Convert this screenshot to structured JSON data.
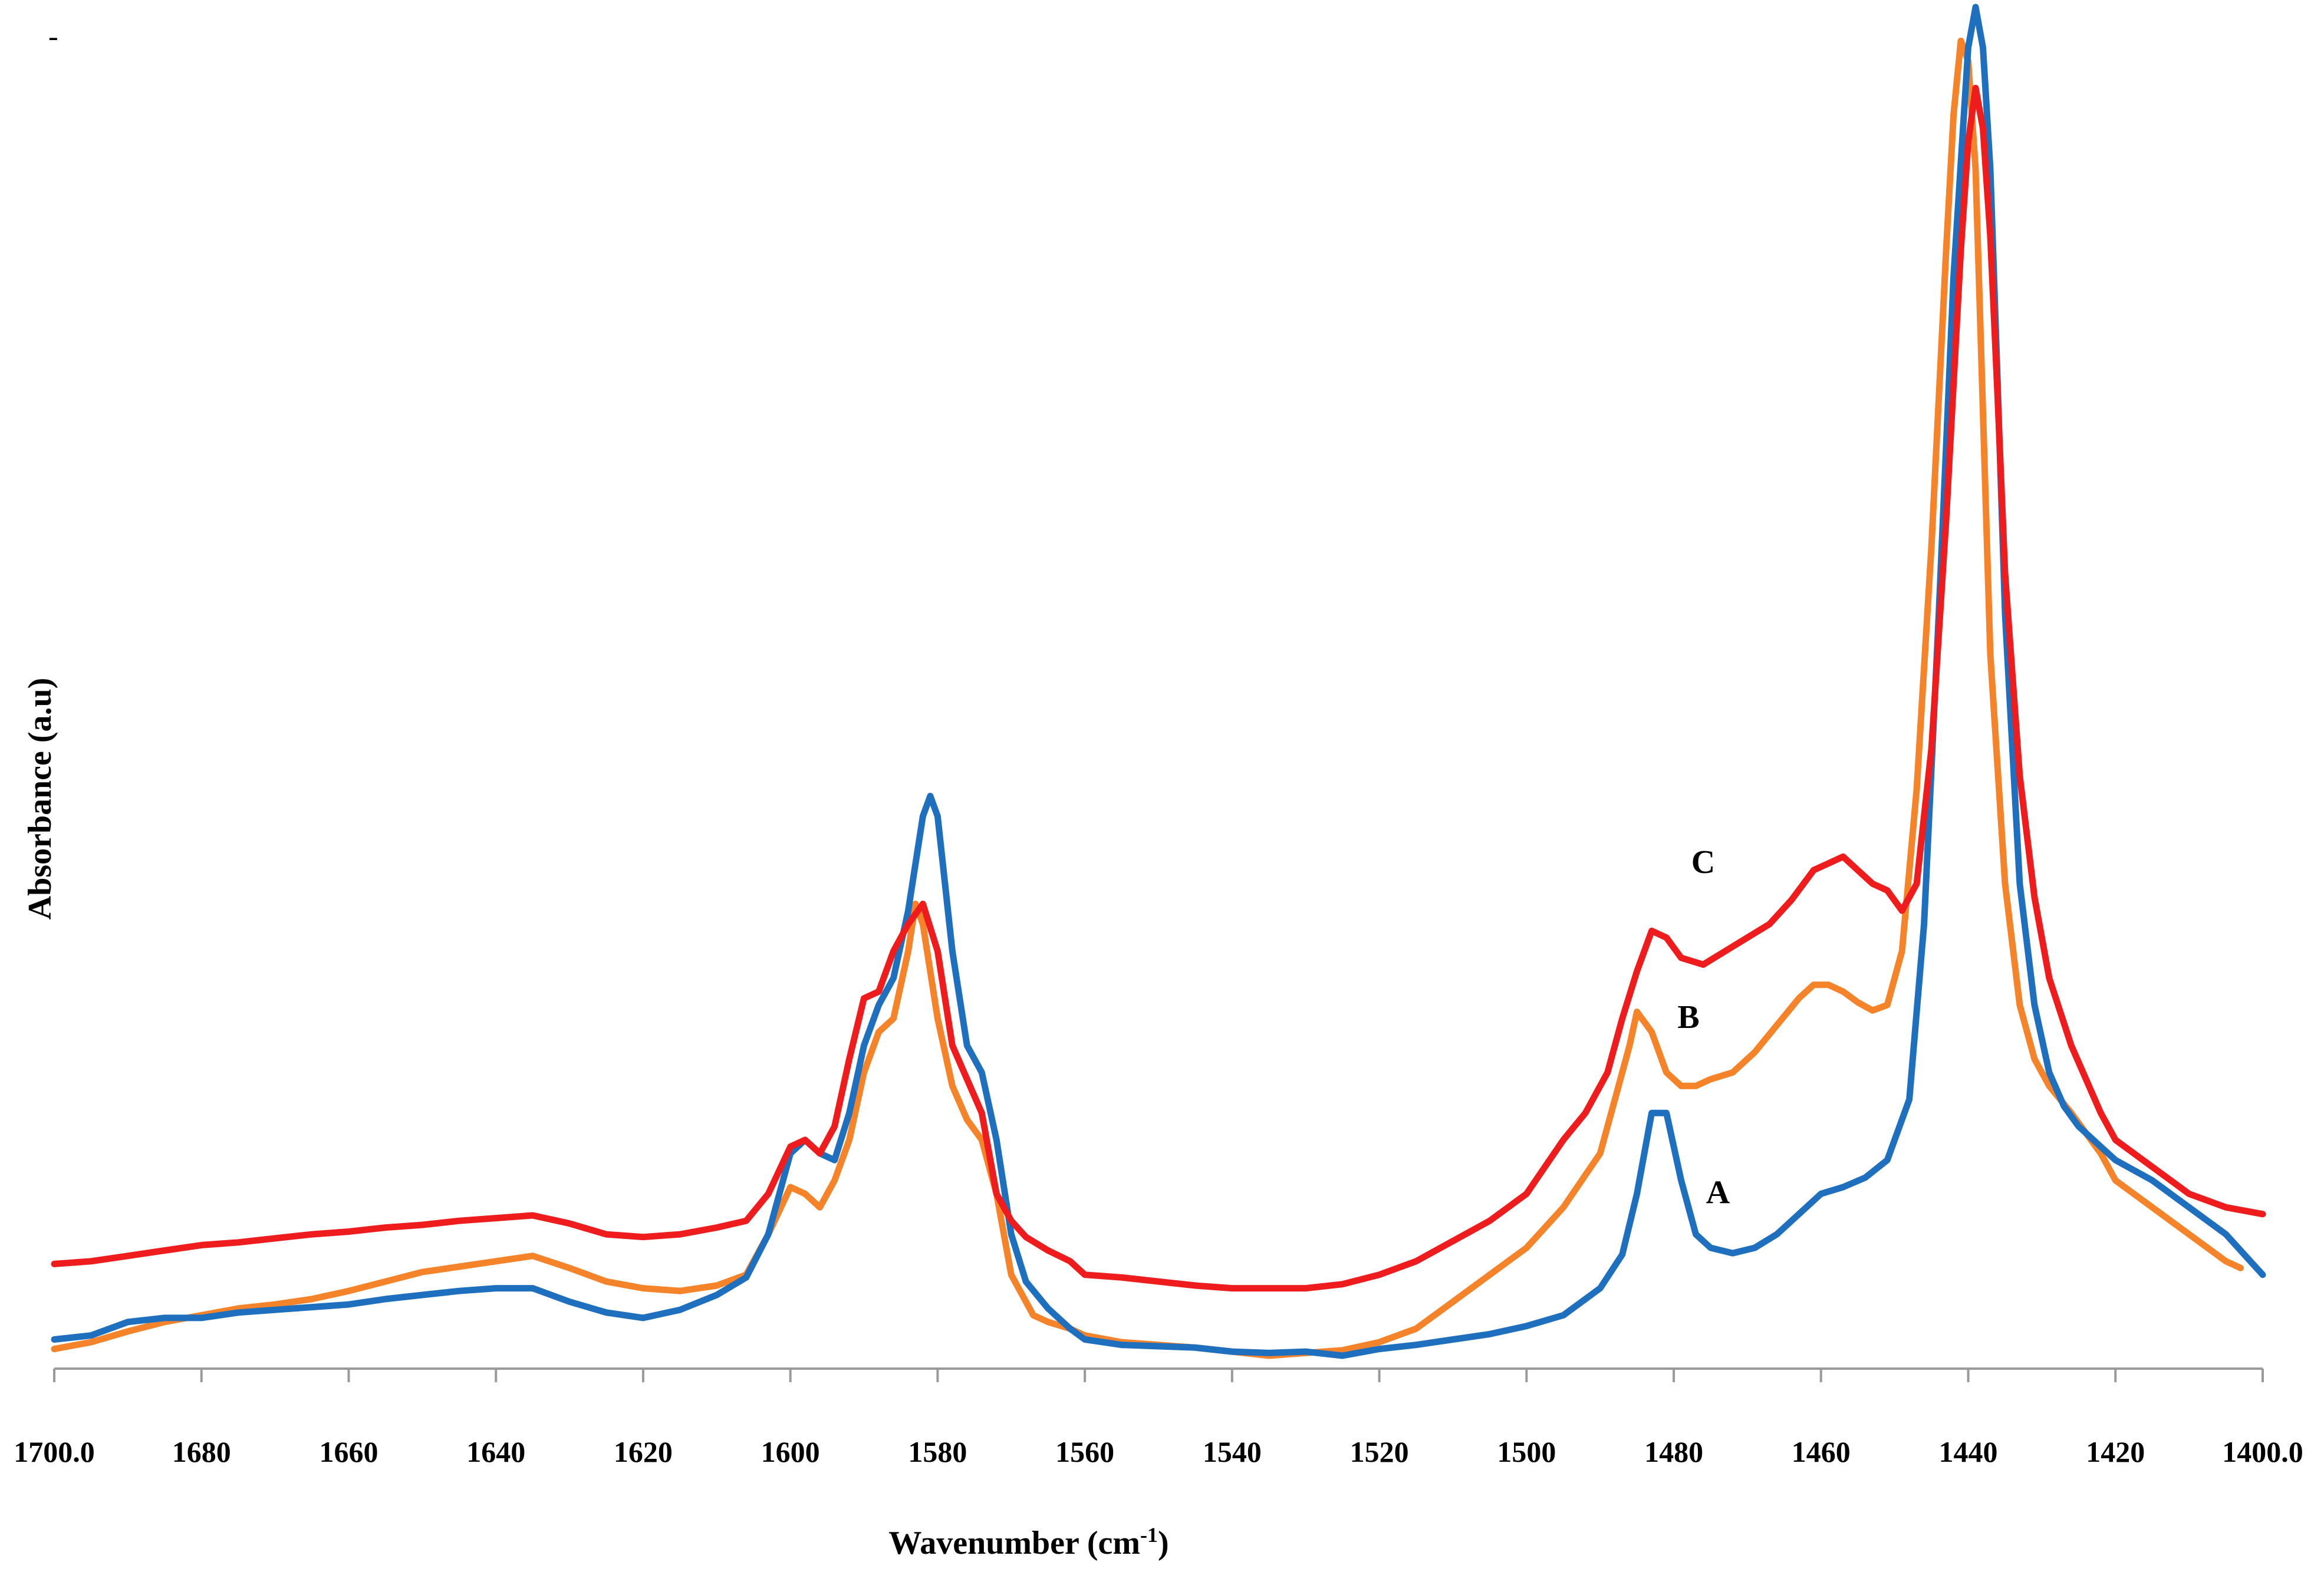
{
  "chart_data": {
    "type": "line",
    "title": "",
    "corner_mark": "-",
    "xlabel": "Wavenumber (cm",
    "xlabel_sup": "-1",
    "xlabel_suffix": ")",
    "ylabel": "Absorbance (a.u)",
    "xlim": [
      1700,
      1400
    ],
    "ylim": [
      0,
      1
    ],
    "x_reversed": true,
    "grid": false,
    "legend": "none",
    "xticks": [
      {
        "value": 1700,
        "label": "1700.0"
      },
      {
        "value": 1680,
        "label": "1680"
      },
      {
        "value": 1660,
        "label": "1660"
      },
      {
        "value": 1640,
        "label": "1640"
      },
      {
        "value": 1620,
        "label": "1620"
      },
      {
        "value": 1600,
        "label": "1600"
      },
      {
        "value": 1580,
        "label": "1580"
      },
      {
        "value": 1560,
        "label": "1560"
      },
      {
        "value": 1540,
        "label": "1540"
      },
      {
        "value": 1520,
        "label": "1520"
      },
      {
        "value": 1500,
        "label": "1500"
      },
      {
        "value": 1480,
        "label": "1480"
      },
      {
        "value": 1460,
        "label": "1460"
      },
      {
        "value": 1440,
        "label": "1440"
      },
      {
        "value": 1420,
        "label": "1420"
      },
      {
        "value": 1400,
        "label": "1400.0"
      }
    ],
    "series": [
      {
        "name": "A",
        "color": "#1f6fbf",
        "label_at": [
          1474,
          0.113
        ],
        "x": [
          1700,
          1695,
          1690,
          1685,
          1680,
          1675,
          1670,
          1665,
          1660,
          1655,
          1650,
          1645,
          1640,
          1635,
          1630,
          1625,
          1620,
          1615,
          1610,
          1606,
          1603,
          1600,
          1598,
          1596,
          1594,
          1592,
          1590,
          1588,
          1586,
          1584,
          1582,
          1581,
          1580,
          1578,
          1576,
          1574,
          1572,
          1570,
          1568,
          1565,
          1562,
          1560,
          1555,
          1550,
          1545,
          1540,
          1535,
          1530,
          1525,
          1520,
          1515,
          1510,
          1505,
          1500,
          1495,
          1490,
          1487,
          1485,
          1483,
          1481,
          1479,
          1477,
          1475,
          1472,
          1469,
          1466,
          1463,
          1460,
          1457,
          1454,
          1451,
          1448,
          1446,
          1444,
          1442,
          1440,
          1439,
          1438,
          1437,
          1436,
          1435,
          1433,
          1431,
          1429,
          1427,
          1425,
          1422,
          1420,
          1415,
          1410,
          1405,
          1400
        ],
        "y": [
          0.012,
          0.015,
          0.025,
          0.028,
          0.028,
          0.032,
          0.034,
          0.036,
          0.038,
          0.042,
          0.045,
          0.048,
          0.05,
          0.05,
          0.04,
          0.032,
          0.028,
          0.034,
          0.045,
          0.058,
          0.09,
          0.15,
          0.16,
          0.15,
          0.145,
          0.18,
          0.23,
          0.26,
          0.28,
          0.33,
          0.4,
          0.415,
          0.4,
          0.3,
          0.23,
          0.21,
          0.16,
          0.09,
          0.055,
          0.035,
          0.02,
          0.012,
          0.008,
          0.007,
          0.006,
          0.003,
          0.002,
          0.003,
          0.0,
          0.005,
          0.008,
          0.012,
          0.016,
          0.022,
          0.03,
          0.05,
          0.075,
          0.12,
          0.18,
          0.18,
          0.13,
          0.09,
          0.08,
          0.076,
          0.08,
          0.09,
          0.105,
          0.12,
          0.125,
          0.132,
          0.145,
          0.19,
          0.32,
          0.55,
          0.8,
          0.97,
          1.0,
          0.97,
          0.88,
          0.72,
          0.55,
          0.35,
          0.26,
          0.21,
          0.185,
          0.17,
          0.155,
          0.145,
          0.13,
          0.11,
          0.09,
          0.06
        ]
      },
      {
        "name": "B",
        "color": "#f5832a",
        "label_at": [
          1478,
          0.243
        ],
        "x": [
          1700,
          1695,
          1690,
          1685,
          1680,
          1675,
          1670,
          1665,
          1660,
          1655,
          1650,
          1645,
          1640,
          1635,
          1630,
          1625,
          1620,
          1615,
          1610,
          1606,
          1603,
          1600,
          1598,
          1596,
          1594,
          1592,
          1590,
          1588,
          1586,
          1584,
          1583,
          1582,
          1580,
          1578,
          1576,
          1574,
          1572,
          1570,
          1567,
          1565,
          1562,
          1560,
          1555,
          1550,
          1545,
          1540,
          1535,
          1530,
          1525,
          1520,
          1515,
          1510,
          1505,
          1500,
          1495,
          1490,
          1488,
          1486,
          1485,
          1483,
          1481,
          1479,
          1477,
          1475,
          1472,
          1469,
          1466,
          1463,
          1461,
          1459,
          1457,
          1455,
          1453,
          1451,
          1449,
          1447,
          1445,
          1443,
          1442,
          1441,
          1440,
          1439,
          1438,
          1437,
          1435,
          1433,
          1431,
          1429,
          1426,
          1422,
          1420,
          1415,
          1410,
          1405,
          1403
        ],
        "y": [
          0.005,
          0.01,
          0.018,
          0.025,
          0.03,
          0.035,
          0.038,
          0.042,
          0.048,
          0.055,
          0.062,
          0.066,
          0.07,
          0.074,
          0.065,
          0.055,
          0.05,
          0.048,
          0.052,
          0.06,
          0.09,
          0.125,
          0.12,
          0.11,
          0.13,
          0.16,
          0.21,
          0.24,
          0.25,
          0.3,
          0.335,
          0.32,
          0.25,
          0.2,
          0.175,
          0.16,
          0.12,
          0.06,
          0.03,
          0.025,
          0.02,
          0.015,
          0.01,
          0.008,
          0.006,
          0.003,
          0.0,
          0.002,
          0.004,
          0.01,
          0.02,
          0.04,
          0.06,
          0.08,
          0.11,
          0.15,
          0.19,
          0.23,
          0.255,
          0.24,
          0.21,
          0.2,
          0.2,
          0.205,
          0.21,
          0.225,
          0.245,
          0.265,
          0.275,
          0.275,
          0.27,
          0.262,
          0.256,
          0.26,
          0.3,
          0.42,
          0.6,
          0.82,
          0.92,
          0.975,
          0.96,
          0.88,
          0.7,
          0.52,
          0.35,
          0.26,
          0.22,
          0.2,
          0.18,
          0.15,
          0.13,
          0.11,
          0.09,
          0.07,
          0.065
        ]
      },
      {
        "name": "C",
        "color": "#ee1c1c",
        "label_at": [
          1476,
          0.358
        ],
        "x": [
          1700,
          1695,
          1690,
          1685,
          1680,
          1675,
          1670,
          1665,
          1660,
          1655,
          1650,
          1645,
          1640,
          1635,
          1630,
          1625,
          1620,
          1615,
          1610,
          1606,
          1603,
          1600,
          1598,
          1596,
          1594,
          1592,
          1590,
          1588,
          1586,
          1584,
          1582,
          1580,
          1578,
          1576,
          1574,
          1572,
          1570,
          1568,
          1565,
          1562,
          1560,
          1555,
          1550,
          1545,
          1540,
          1535,
          1530,
          1525,
          1520,
          1515,
          1510,
          1505,
          1500,
          1495,
          1492,
          1489,
          1487,
          1485,
          1483,
          1481,
          1479,
          1476,
          1473,
          1470,
          1467,
          1464,
          1461,
          1459,
          1457,
          1455,
          1453,
          1451,
          1449,
          1447,
          1445,
          1443,
          1441,
          1440,
          1439,
          1438,
          1437,
          1436,
          1435,
          1433,
          1431,
          1429,
          1426,
          1422,
          1420,
          1415,
          1410,
          1405,
          1400
        ],
        "y": [
          0.068,
          0.07,
          0.074,
          0.078,
          0.082,
          0.084,
          0.087,
          0.09,
          0.092,
          0.095,
          0.097,
          0.1,
          0.102,
          0.104,
          0.098,
          0.09,
          0.088,
          0.09,
          0.095,
          0.1,
          0.12,
          0.155,
          0.16,
          0.15,
          0.17,
          0.22,
          0.265,
          0.27,
          0.3,
          0.32,
          0.335,
          0.3,
          0.23,
          0.205,
          0.18,
          0.12,
          0.1,
          0.088,
          0.078,
          0.07,
          0.06,
          0.058,
          0.055,
          0.052,
          0.05,
          0.05,
          0.05,
          0.053,
          0.06,
          0.07,
          0.085,
          0.1,
          0.12,
          0.16,
          0.18,
          0.21,
          0.25,
          0.285,
          0.315,
          0.31,
          0.295,
          0.29,
          0.3,
          0.31,
          0.32,
          0.338,
          0.36,
          0.365,
          0.37,
          0.36,
          0.35,
          0.345,
          0.33,
          0.35,
          0.45,
          0.62,
          0.82,
          0.9,
          0.94,
          0.91,
          0.83,
          0.71,
          0.58,
          0.43,
          0.34,
          0.28,
          0.23,
          0.18,
          0.16,
          0.14,
          0.12,
          0.11,
          0.105
        ]
      }
    ]
  }
}
